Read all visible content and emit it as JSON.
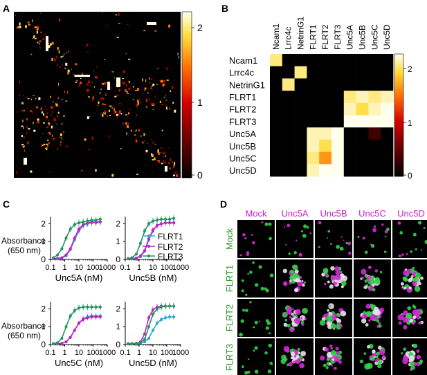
{
  "panels": {
    "A": {
      "label": "A",
      "colorbar": {
        "ticks": [
          "2",
          "1",
          "0"
        ]
      }
    },
    "B": {
      "label": "B",
      "colorbar": {
        "ticks": [
          "2",
          "1",
          "0"
        ]
      },
      "column_labels": [
        "Ncam1",
        "Lrrc4c",
        "NetrinG1",
        "FLRT1",
        "FLRT2",
        "FLRT3",
        "Unc5A",
        "Unc5B",
        "Unc5C",
        "Unc5D"
      ],
      "row_labels": [
        "Ncam1",
        "Lrrc4c",
        "NetrinG1",
        "FLRT1",
        "FLRT2",
        "FLRT3",
        "Unc5A",
        "Unc5B",
        "Unc5C",
        "Unc5D"
      ]
    },
    "C": {
      "label": "C",
      "ylabel_line1": "Absorbance",
      "ylabel_line2": "(650 nm)",
      "legend": [
        "FLRT1",
        "FLRT2",
        "FLRT3"
      ],
      "y_ticks": [
        "2",
        "1",
        "0"
      ],
      "x_ticks": [
        "0.1",
        "1",
        "10",
        "100",
        "1000"
      ],
      "x_tick_values": [
        0.1,
        1,
        10,
        100,
        1000
      ],
      "subplot_xlabels": [
        "Unc5A (nM)",
        "Unc5B (nM)",
        "Unc5C (nM)",
        "Unc5D (nM)"
      ]
    },
    "D": {
      "label": "D",
      "column_labels": [
        "Mock",
        "Unc5A",
        "Unc5B",
        "Unc5C",
        "Unc5D"
      ],
      "row_labels": [
        "Mock",
        "FLRT1",
        "FLRT2",
        "FLRT3"
      ]
    }
  },
  "colors": {
    "FLRT1": "#2aa7d8",
    "FLRT2": "#c41fc8",
    "FLRT3": "#229560",
    "magenta_label": "#cc22cc",
    "green_label": "#2a9a2a"
  },
  "chart_data": [
    {
      "type": "heatmap",
      "panel": "B",
      "rows": [
        "Ncam1",
        "Lrrc4c",
        "NetrinG1",
        "FLRT1",
        "FLRT2",
        "FLRT3",
        "Unc5A",
        "Unc5B",
        "Unc5C",
        "Unc5D"
      ],
      "cols": [
        "Ncam1",
        "Lrrc4c",
        "NetrinG1",
        "FLRT1",
        "FLRT2",
        "FLRT3",
        "Unc5A",
        "Unc5B",
        "Unc5C",
        "Unc5D"
      ],
      "values": [
        [
          2.0,
          0,
          0,
          0,
          0,
          0,
          0,
          0,
          0,
          0
        ],
        [
          0,
          0,
          2.0,
          0,
          0,
          0,
          0,
          0,
          0,
          0
        ],
        [
          0,
          2.0,
          0,
          0,
          0,
          0,
          0,
          0,
          0,
          0
        ],
        [
          0,
          0,
          0,
          0,
          0,
          0,
          2.0,
          2.1,
          2.0,
          2.1
        ],
        [
          0,
          0,
          0,
          0,
          0,
          0,
          2.1,
          1.9,
          2.1,
          2.2
        ],
        [
          0,
          0,
          0,
          0,
          0,
          0,
          2.2,
          2.2,
          2.2,
          2.2
        ],
        [
          0,
          0,
          0,
          2.1,
          2.1,
          2.2,
          0,
          0,
          0.3,
          0
        ],
        [
          0,
          0,
          0,
          2.1,
          1.9,
          2.2,
          0,
          0,
          0,
          0
        ],
        [
          0,
          0,
          0,
          2.0,
          1.6,
          2.2,
          0,
          0,
          0,
          0
        ],
        [
          0,
          0,
          0,
          2.1,
          2.2,
          2.2,
          0,
          0,
          0,
          0
        ]
      ],
      "vmin": 0,
      "vmax": 2.2
    },
    {
      "type": "line",
      "panel": "C",
      "xscale": "log",
      "xlabel": "Unc5A (nM)",
      "ylabel": "Absorbance (650 nm)",
      "xlim": [
        0.1,
        1000
      ],
      "ylim": [
        0,
        2.4
      ],
      "x": [
        0.16,
        0.31,
        0.63,
        1.25,
        2.5,
        5,
        10,
        20,
        40,
        80,
        160,
        320
      ],
      "series": [
        {
          "name": "FLRT1",
          "values": [
            0.05,
            0.05,
            0.08,
            0.2,
            0.55,
            1.1,
            1.6,
            1.9,
            2.0,
            2.05,
            2.05,
            2.1
          ]
        },
        {
          "name": "FLRT2",
          "values": [
            0.05,
            0.06,
            0.1,
            0.25,
            0.6,
            1.2,
            1.7,
            1.95,
            2.05,
            2.1,
            2.1,
            2.1
          ]
        },
        {
          "name": "FLRT3",
          "values": [
            0.1,
            0.25,
            0.6,
            1.2,
            1.7,
            1.95,
            2.05,
            2.1,
            2.15,
            2.2,
            2.2,
            2.25
          ]
        }
      ]
    },
    {
      "type": "line",
      "panel": "C",
      "xscale": "log",
      "xlabel": "Unc5B (nM)",
      "ylabel": "",
      "xlim": [
        0.1,
        1000
      ],
      "ylim": [
        0,
        2.4
      ],
      "x": [
        0.16,
        0.31,
        0.63,
        1.25,
        2.5,
        5,
        10,
        20,
        40,
        80,
        160,
        320
      ],
      "series": [
        {
          "name": "FLRT1",
          "values": [
            0.05,
            0.05,
            0.07,
            0.15,
            0.45,
            1.1,
            1.6,
            1.9,
            2.0,
            2.05,
            2.05,
            2.05
          ]
        },
        {
          "name": "FLRT2",
          "values": [
            0.05,
            0.05,
            0.08,
            0.2,
            0.5,
            1.15,
            1.65,
            1.9,
            2.0,
            2.05,
            2.05,
            2.05
          ]
        },
        {
          "name": "FLRT3",
          "values": [
            0.05,
            0.1,
            0.3,
            0.9,
            1.6,
            2.0,
            2.15,
            2.2,
            2.25,
            2.25,
            2.25,
            2.3
          ]
        }
      ]
    },
    {
      "type": "line",
      "panel": "C",
      "xscale": "log",
      "xlabel": "Unc5C (nM)",
      "ylabel": "Absorbance (650 nm)",
      "xlim": [
        0.1,
        1000
      ],
      "ylim": [
        0,
        2.4
      ],
      "x": [
        0.16,
        0.31,
        0.63,
        1.25,
        2.5,
        5,
        10,
        20,
        40,
        80,
        160,
        320
      ],
      "series": [
        {
          "name": "FLRT1",
          "values": [
            0.05,
            0.05,
            0.07,
            0.15,
            0.4,
            0.8,
            1.2,
            1.45,
            1.55,
            1.6,
            1.6,
            1.6
          ]
        },
        {
          "name": "FLRT2",
          "values": [
            0.05,
            0.05,
            0.07,
            0.15,
            0.4,
            0.8,
            1.2,
            1.4,
            1.5,
            1.55,
            1.55,
            1.55
          ]
        },
        {
          "name": "FLRT3",
          "values": [
            0.05,
            0.1,
            0.35,
            1.0,
            1.6,
            1.9,
            2.05,
            2.1,
            2.1,
            2.1,
            2.1,
            2.1
          ]
        }
      ]
    },
    {
      "type": "line",
      "panel": "C",
      "xscale": "log",
      "xlabel": "Unc5D (nM)",
      "ylabel": "",
      "xlim": [
        0.1,
        1000
      ],
      "ylim": [
        0,
        2.4
      ],
      "x": [
        0.16,
        0.31,
        0.63,
        1.25,
        2.5,
        5,
        10,
        20,
        40,
        80,
        160,
        320
      ],
      "series": [
        {
          "name": "FLRT1",
          "values": [
            0.05,
            0.05,
            0.05,
            0.08,
            0.15,
            0.35,
            0.8,
            1.2,
            1.4,
            1.5,
            1.55,
            1.55
          ]
        },
        {
          "name": "FLRT2",
          "values": [
            0.05,
            0.05,
            0.07,
            0.15,
            0.6,
            1.5,
            1.95,
            2.1,
            2.15,
            2.15,
            2.15,
            2.15
          ]
        },
        {
          "name": "FLRT3",
          "values": [
            0.05,
            0.05,
            0.06,
            0.1,
            0.3,
            1.0,
            1.7,
            2.0,
            2.1,
            2.15,
            2.15,
            2.15
          ]
        }
      ]
    }
  ]
}
